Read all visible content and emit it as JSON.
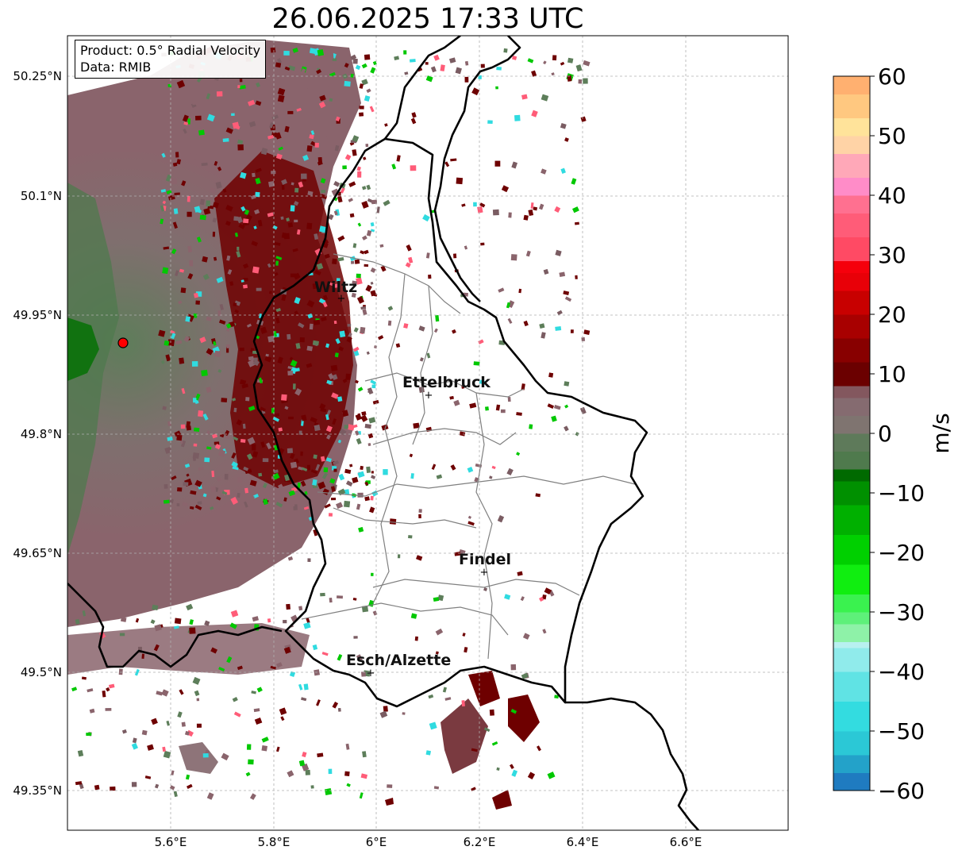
{
  "title": "26.06.2025 17:33 UTC",
  "info": {
    "product": "Product: 0.5° Radial Velocity",
    "data": "Data: RMIB"
  },
  "axes": {
    "lat_ticks": [
      "50.25°N",
      "50.1°N",
      "49.95°N",
      "49.8°N",
      "49.65°N",
      "49.5°N",
      "49.35°N"
    ],
    "lon_ticks": [
      "5.6°E",
      "5.8°E",
      "6°E",
      "6.2°E",
      "6.4°E",
      "6.6°E"
    ]
  },
  "cities": [
    {
      "name": "Wiltz"
    },
    {
      "name": "Ettelbruck"
    },
    {
      "name": "Findel"
    },
    {
      "name": "Esch/Alzette"
    }
  ],
  "colorbar": {
    "unit": "m/s",
    "min": -60,
    "max": 60,
    "tick_labels": [
      "60",
      "50",
      "40",
      "30",
      "20",
      "10",
      "0",
      "−10",
      "−20",
      "−30",
      "−40",
      "−50",
      "−60"
    ]
  },
  "colors": {
    "inbound_strong": "#2a85c0",
    "inbound_cyan": "#30dbe0",
    "inbound_green": "#00c800",
    "near_zero_green": "#5d7e5a",
    "near_zero_mauve": "#8a6c70",
    "outbound_dark_red": "#6e0000",
    "outbound_red": "#e8000a",
    "outbound_pink": "#ff80c0",
    "outbound_orange": "#ffa060",
    "radar_site": "#ff0000"
  }
}
